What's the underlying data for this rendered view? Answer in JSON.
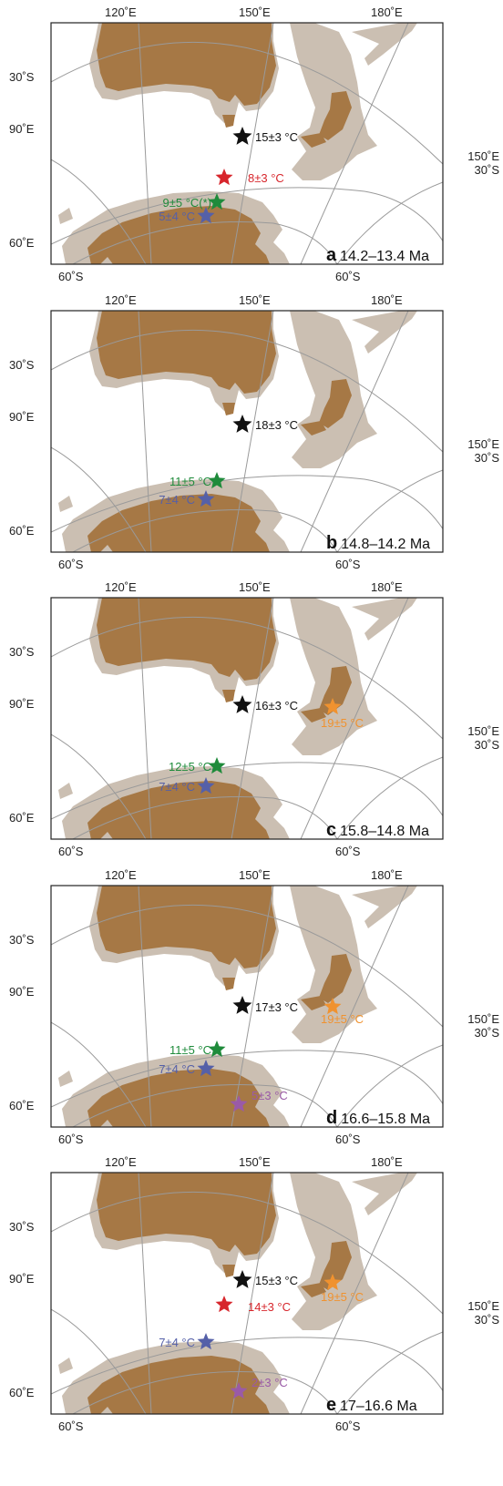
{
  "colors": {
    "land": "#a67845",
    "shelf": "#cbbfb2",
    "grid": "#9a9a9a",
    "frame": "#222222",
    "black": "#111111",
    "red": "#d7262c",
    "green": "#1f8b3b",
    "blue": "#5560a8",
    "orange": "#f0922f",
    "purple": "#9a5aa7"
  },
  "axis_labels": {
    "lon120": "120˚E",
    "lon150": "150˚E",
    "lon180": "180˚E",
    "lat30": "30˚S",
    "lat60": "60˚S",
    "lon90": "90˚E",
    "lon60": "60˚E",
    "right_lon": "150˚E",
    "right_lat": "30˚S"
  },
  "panels": [
    {
      "letter": "a",
      "age": "14.2–13.4 Ma",
      "sites": [
        {
          "id": "black",
          "color": "black",
          "label": "15±3 °C"
        },
        {
          "id": "red",
          "color": "red",
          "label": "8±3 °C"
        },
        {
          "id": "green",
          "color": "green",
          "label": "9±5 °C(*)"
        },
        {
          "id": "blue",
          "color": "blue",
          "label": "5±4 °C"
        }
      ]
    },
    {
      "letter": "b",
      "age": "14.8–14.2 Ma",
      "sites": [
        {
          "id": "black",
          "color": "black",
          "label": "18±3 °C"
        },
        {
          "id": "green",
          "color": "green",
          "label": "11±5 °C"
        },
        {
          "id": "blue",
          "color": "blue",
          "label": "7±4 °C"
        }
      ]
    },
    {
      "letter": "c",
      "age": "15.8–14.8 Ma",
      "sites": [
        {
          "id": "black",
          "color": "black",
          "label": "16±3 °C"
        },
        {
          "id": "orange",
          "color": "orange",
          "label": "19±5 °C"
        },
        {
          "id": "green",
          "color": "green",
          "label": "12±5 °C"
        },
        {
          "id": "blue",
          "color": "blue",
          "label": "7±4 °C"
        }
      ]
    },
    {
      "letter": "d",
      "age": "16.6–15.8 Ma",
      "sites": [
        {
          "id": "black",
          "color": "black",
          "label": "17±3 °C"
        },
        {
          "id": "orange",
          "color": "orange",
          "label": "19±5 °C"
        },
        {
          "id": "green",
          "color": "green",
          "label": "11±5 °C"
        },
        {
          "id": "blue",
          "color": "blue",
          "label": "7±4 °C"
        },
        {
          "id": "purple",
          "color": "purple",
          "label": "5±3 °C"
        }
      ]
    },
    {
      "letter": "e",
      "age": "17–16.6 Ma",
      "sites": [
        {
          "id": "black",
          "color": "black",
          "label": "15±3 °C"
        },
        {
          "id": "orange",
          "color": "orange",
          "label": "19±5 °C"
        },
        {
          "id": "red",
          "color": "red",
          "label": "14±3 °C"
        },
        {
          "id": "blue",
          "color": "blue",
          "label": "7±4 °C"
        },
        {
          "id": "purple",
          "color": "purple",
          "label": "2±3 °C"
        }
      ]
    }
  ]
}
